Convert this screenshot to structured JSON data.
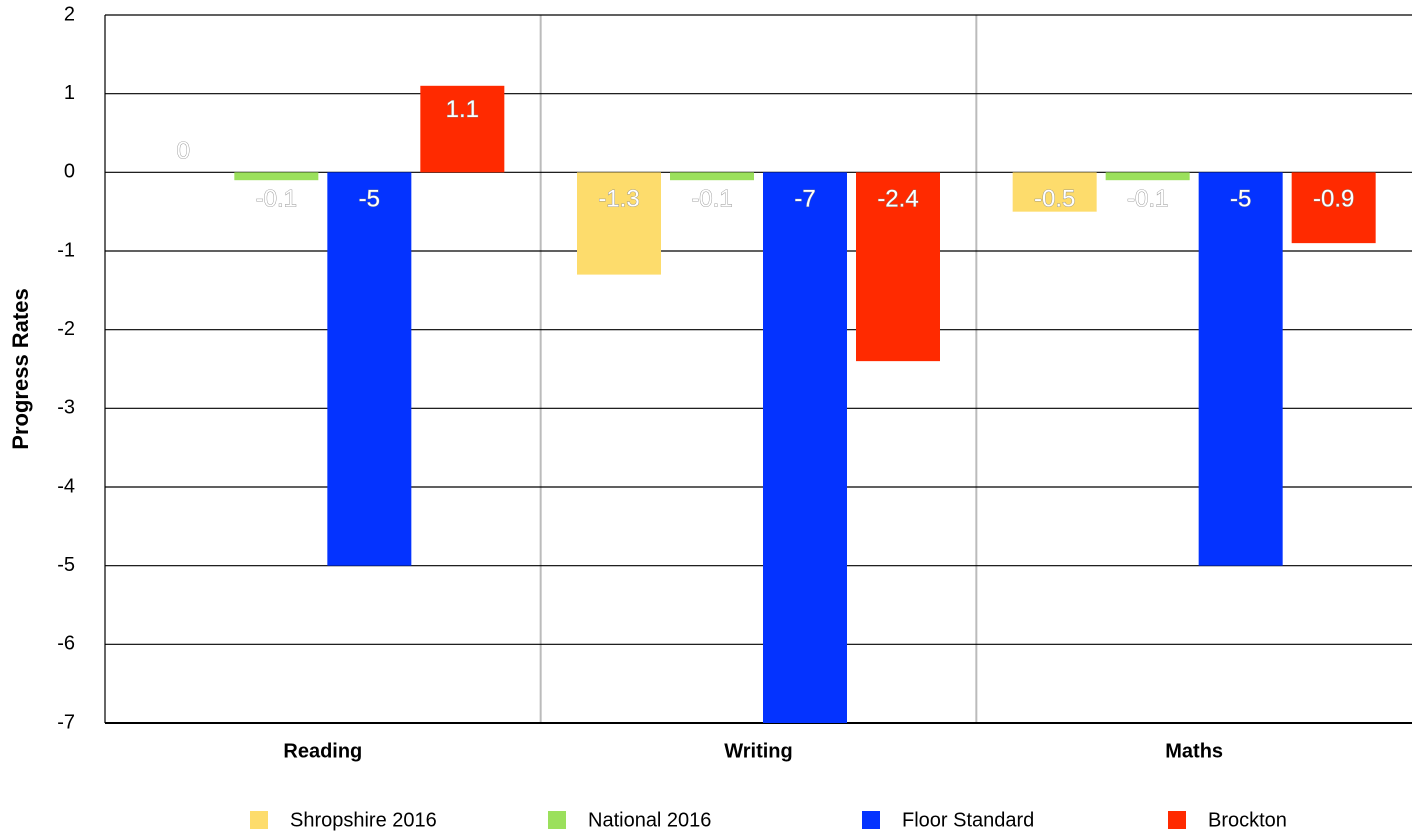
{
  "chart_data": {
    "type": "bar",
    "y_label": "Progress Rates",
    "categories": [
      "Reading",
      "Writing",
      "Maths"
    ],
    "series": [
      {
        "name": "Shropshire 2016",
        "color": "#fddc6c",
        "values": [
          0,
          -1.3,
          -0.5
        ]
      },
      {
        "name": "National 2016",
        "color": "#9be05c",
        "values": [
          -0.1,
          -0.1,
          -0.1
        ]
      },
      {
        "name": "Floor Standard",
        "color": "#0433ff",
        "values": [
          -5,
          -7,
          -5
        ]
      },
      {
        "name": "Brockton",
        "color": "#ff2a00",
        "values": [
          1.1,
          -2.4,
          -0.9
        ]
      }
    ],
    "ylim": [
      -7,
      2
    ],
    "yticks": [
      -7,
      -6,
      -5,
      -4,
      -3,
      -2,
      -1,
      0,
      1,
      2
    ],
    "grid": true,
    "legend": "bottom"
  }
}
